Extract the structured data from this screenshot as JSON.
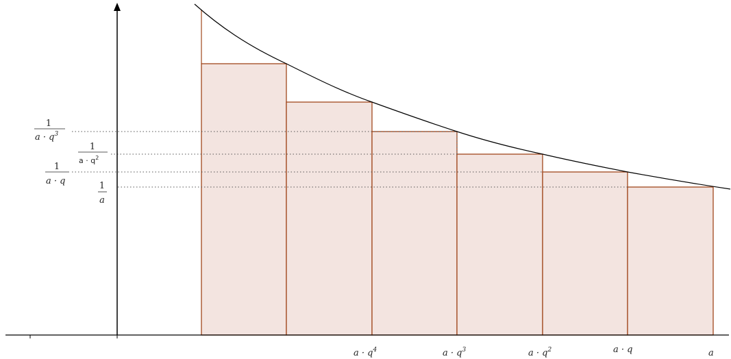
{
  "diagram": {
    "colors": {
      "curve": "#000000",
      "rect_stroke": "#a0461c",
      "rect_fill": "#f3e4e0",
      "dotted": "#555555",
      "axis": "#000000"
    },
    "x_labels": [
      {
        "base": "a · q",
        "sup": "4"
      },
      {
        "base": "a · q",
        "sup": "3"
      },
      {
        "base": "a · q",
        "sup": "2"
      },
      {
        "base": "a · q",
        "sup": ""
      },
      {
        "base": "a",
        "sup": ""
      }
    ],
    "y_labels": [
      {
        "num": "1",
        "den": "a · q",
        "den_sup": "3"
      },
      {
        "num": "1",
        "den": "a · q",
        "den_sup": "2"
      },
      {
        "num": "1",
        "den": "a · q",
        "den_sup": ""
      },
      {
        "num": "1",
        "den": "a",
        "den_sup": ""
      }
    ]
  }
}
